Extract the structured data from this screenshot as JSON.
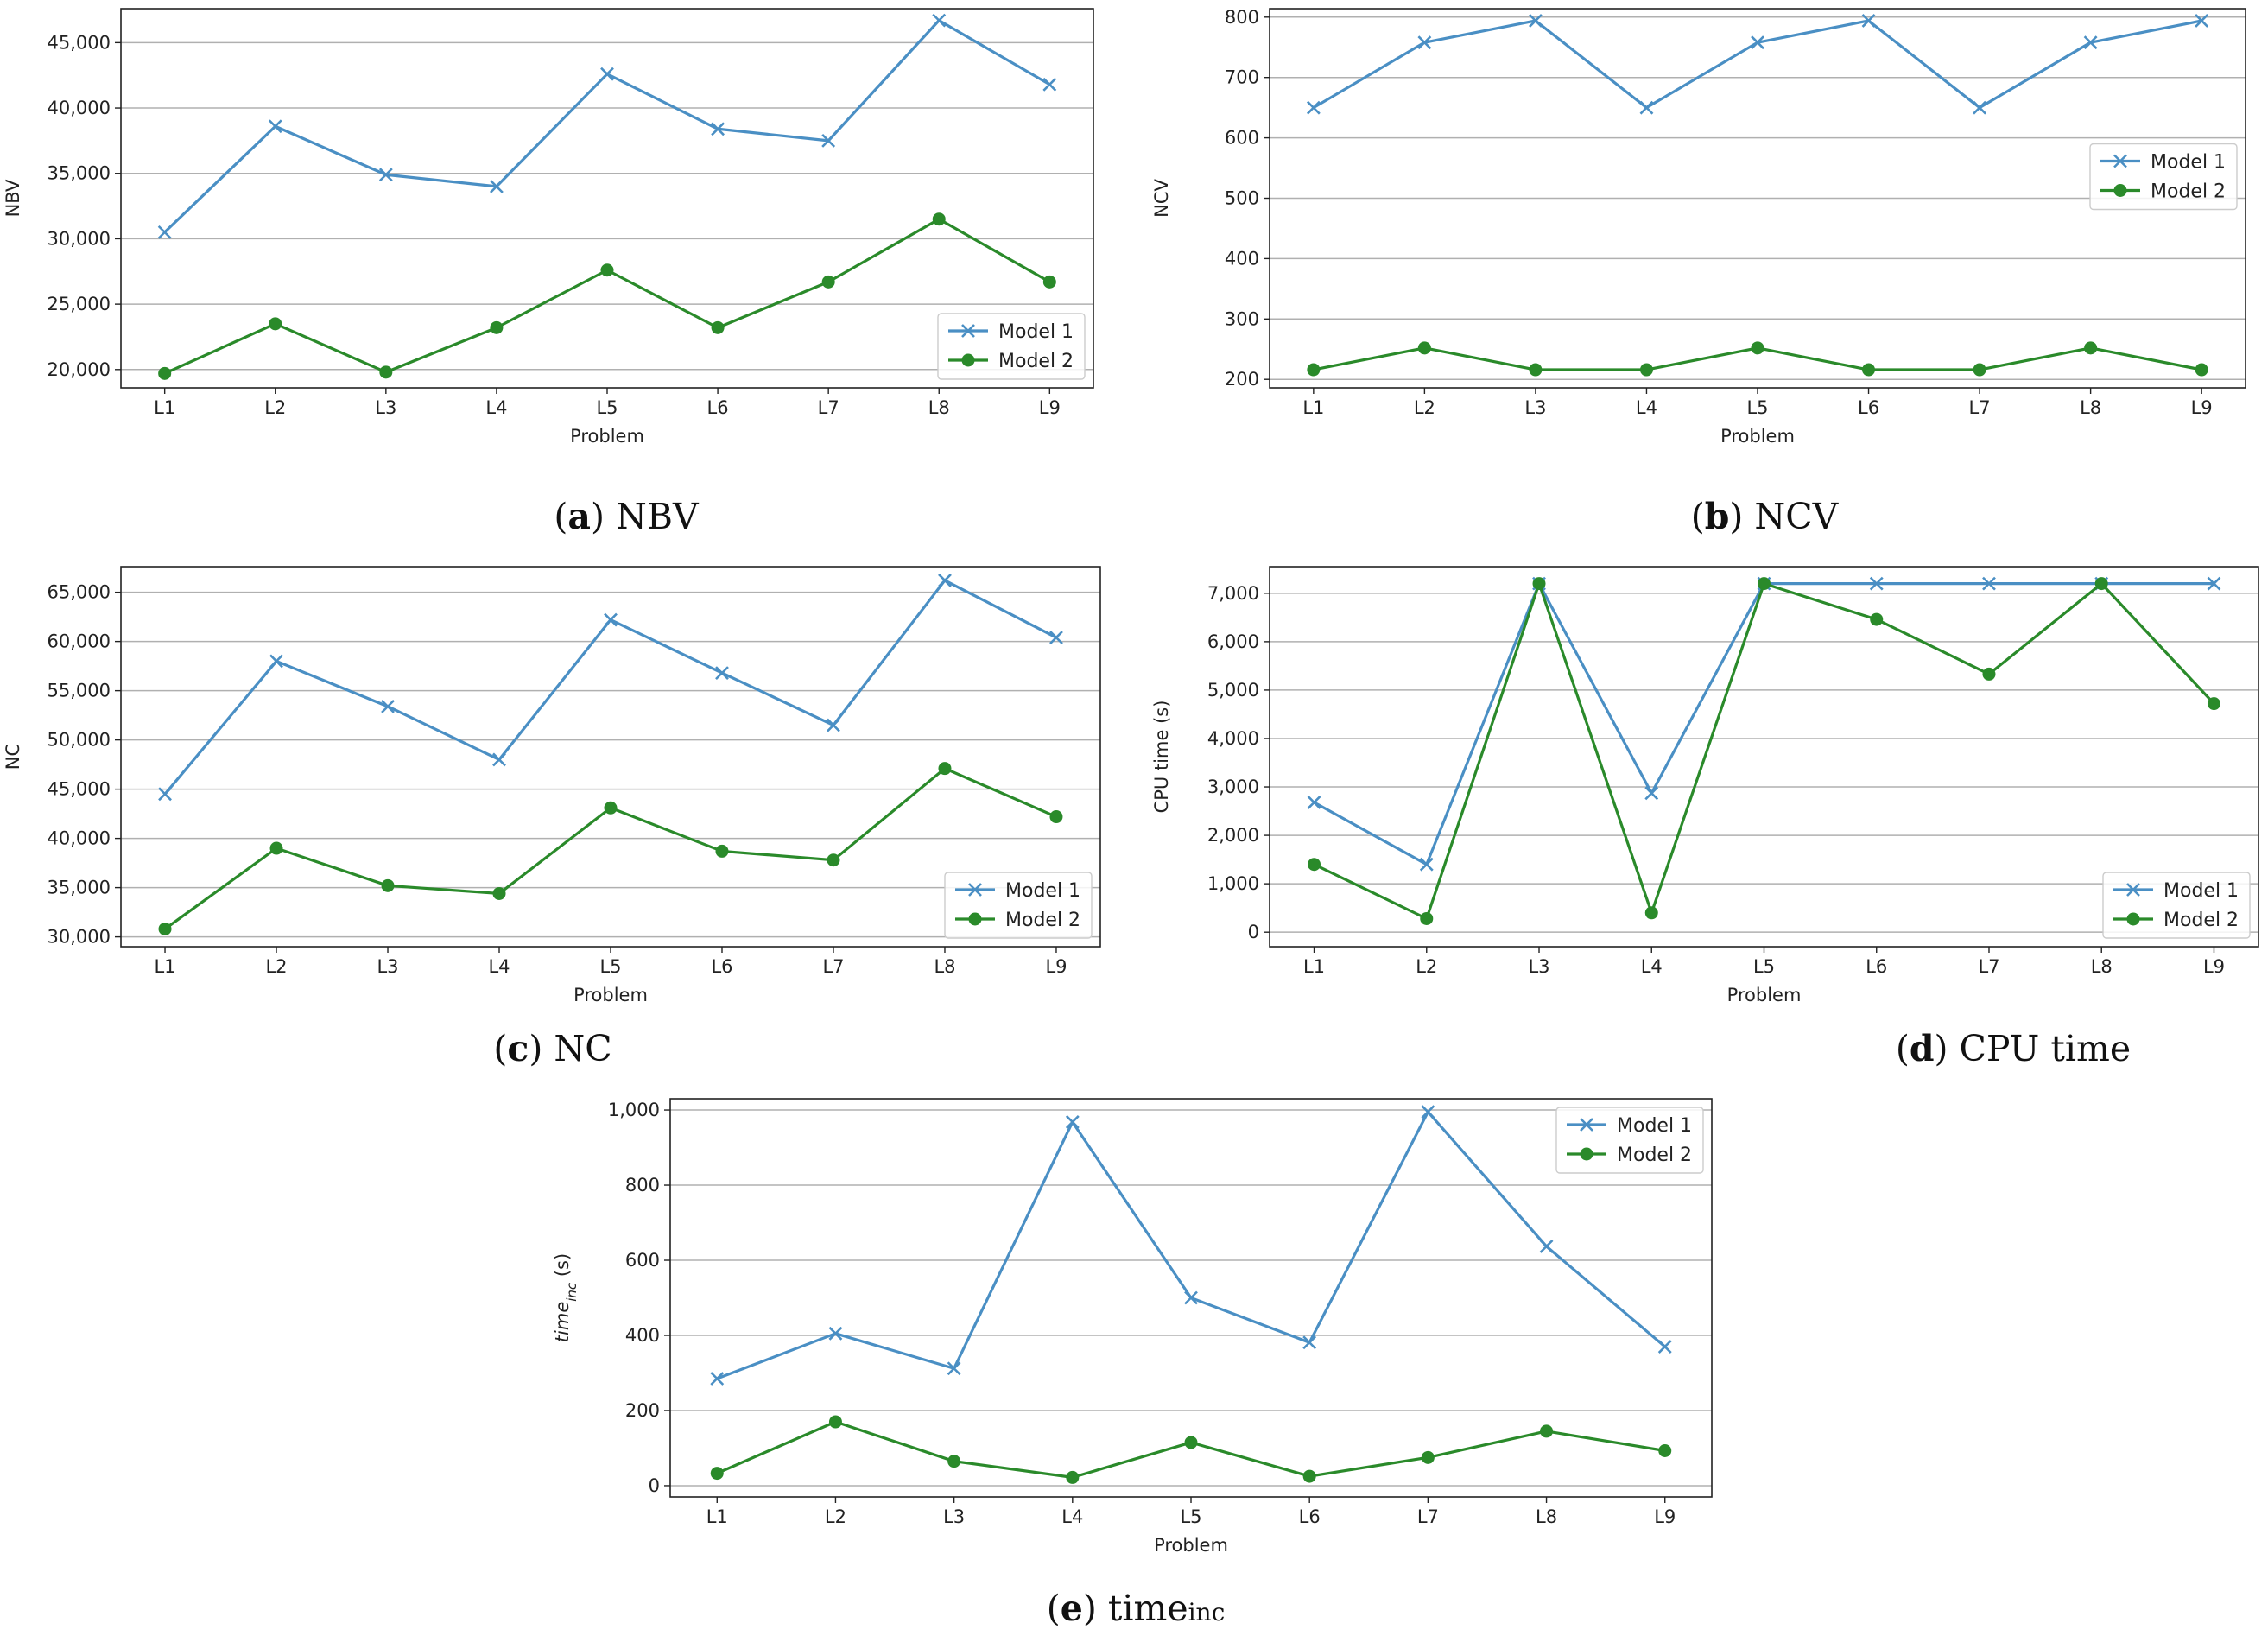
{
  "colors": {
    "model1": "#4a8fc4",
    "model2": "#2a8a2a"
  },
  "chart_data": [
    {
      "id": "a",
      "type": "line",
      "caption_letter": "a",
      "caption_text": "NBV",
      "categories": [
        "L1",
        "L2",
        "L3",
        "L4",
        "L5",
        "L6",
        "L7",
        "L8",
        "L9"
      ],
      "xlabel": "Problem",
      "ylabel": "NBV",
      "ylim": [
        18600,
        47600
      ],
      "yticks": [
        20000,
        25000,
        30000,
        35000,
        40000,
        45000
      ],
      "ytick_labels": [
        "20,000",
        "25,000",
        "30,000",
        "35,000",
        "40,000",
        "45,000"
      ],
      "legend_position": "lower-right",
      "series": [
        {
          "name": "Model 1",
          "marker": "x",
          "values": [
            30500,
            38600,
            34900,
            34000,
            42600,
            38400,
            37500,
            46700,
            41800
          ]
        },
        {
          "name": "Model 2",
          "marker": "o",
          "values": [
            19700,
            23500,
            19800,
            23200,
            27600,
            23200,
            26700,
            31500,
            26700
          ]
        }
      ]
    },
    {
      "id": "b",
      "type": "line",
      "caption_letter": "b",
      "caption_text": "NCV",
      "categories": [
        "L1",
        "L2",
        "L3",
        "L4",
        "L5",
        "L6",
        "L7",
        "L8",
        "L9"
      ],
      "xlabel": "Problem",
      "ylabel": "NCV",
      "ylim": [
        186,
        814
      ],
      "yticks": [
        200,
        300,
        400,
        500,
        600,
        700,
        800
      ],
      "ytick_labels": [
        "200",
        "300",
        "400",
        "500",
        "600",
        "700",
        "800"
      ],
      "legend_position": "center-right",
      "series": [
        {
          "name": "Model 1",
          "marker": "x",
          "values": [
            650,
            758,
            794,
            650,
            758,
            794,
            650,
            758,
            794
          ]
        },
        {
          "name": "Model 2",
          "marker": "o",
          "values": [
            216,
            252,
            216,
            216,
            252,
            216,
            216,
            252,
            216
          ]
        }
      ]
    },
    {
      "id": "c",
      "type": "line",
      "caption_letter": "c",
      "caption_text": "NC",
      "categories": [
        "L1",
        "L2",
        "L3",
        "L4",
        "L5",
        "L6",
        "L7",
        "L8",
        "L9"
      ],
      "xlabel": "Problem",
      "ylabel": "NC",
      "ylim": [
        29000,
        67600
      ],
      "yticks": [
        30000,
        35000,
        40000,
        45000,
        50000,
        55000,
        60000,
        65000
      ],
      "ytick_labels": [
        "30,000",
        "35,000",
        "40,000",
        "45,000",
        "50,000",
        "55,000",
        "60,000",
        "65,000"
      ],
      "legend_position": "lower-right",
      "series": [
        {
          "name": "Model 1",
          "marker": "x",
          "values": [
            44500,
            58000,
            53400,
            48000,
            62200,
            56800,
            51500,
            66200,
            60400
          ]
        },
        {
          "name": "Model 2",
          "marker": "o",
          "values": [
            30800,
            39000,
            35200,
            34400,
            43100,
            38700,
            37800,
            47100,
            42200
          ]
        }
      ]
    },
    {
      "id": "d",
      "type": "line",
      "caption_letter": "d",
      "caption_text": "CPU time",
      "categories": [
        "L1",
        "L2",
        "L3",
        "L4",
        "L5",
        "L6",
        "L7",
        "L8",
        "L9"
      ],
      "xlabel": "Problem",
      "ylabel": "CPU time (s)",
      "ylim": [
        -300,
        7550
      ],
      "yticks": [
        0,
        1000,
        2000,
        3000,
        4000,
        5000,
        6000,
        7000
      ],
      "ytick_labels": [
        "0",
        "1,000",
        "2,000",
        "3,000",
        "4,000",
        "5,000",
        "6,000",
        "7,000"
      ],
      "legend_position": "lower-right",
      "series": [
        {
          "name": "Model 1",
          "marker": "x",
          "values": [
            2680,
            1400,
            7200,
            2870,
            7200,
            7200,
            7200,
            7200,
            7200
          ]
        },
        {
          "name": "Model 2",
          "marker": "o",
          "values": [
            1400,
            280,
            7200,
            400,
            7200,
            6460,
            5330,
            7200,
            4720
          ]
        }
      ]
    },
    {
      "id": "e",
      "type": "line",
      "caption_letter": "e",
      "caption_text": "time",
      "caption_sub": "inc",
      "categories": [
        "L1",
        "L2",
        "L3",
        "L4",
        "L5",
        "L6",
        "L7",
        "L8",
        "L9"
      ],
      "xlabel": "Problem",
      "ylabel": "time",
      "ylabel_sub": "inc",
      "ylabel_unit": " (s)",
      "ylim": [
        -30,
        1030
      ],
      "yticks": [
        0,
        200,
        400,
        600,
        800,
        1000
      ],
      "ytick_labels": [
        "0",
        "200",
        "400",
        "600",
        "800",
        "1,000"
      ],
      "legend_position": "upper-right",
      "series": [
        {
          "name": "Model 1",
          "marker": "x",
          "values": [
            285,
            405,
            312,
            968,
            500,
            381,
            995,
            637,
            370
          ]
        },
        {
          "name": "Model 2",
          "marker": "o",
          "values": [
            33,
            170,
            65,
            22,
            115,
            25,
            75,
            145,
            93
          ]
        }
      ]
    }
  ]
}
